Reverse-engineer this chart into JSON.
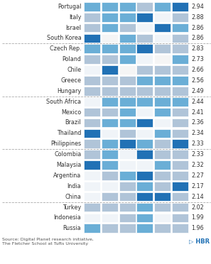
{
  "countries": [
    "Portugal",
    "Italy",
    "Israel",
    "South Korea",
    "Czech Rep.",
    "Poland",
    "Chile",
    "Greece",
    "Hungary",
    "South Africa",
    "Mexico",
    "Brazil",
    "Thailand",
    "Philippines",
    "Colombia",
    "Malaysia",
    "Argentina",
    "India",
    "China",
    "Turkey",
    "Indonesia",
    "Russia"
  ],
  "scores": [
    2.94,
    2.88,
    2.86,
    2.86,
    2.83,
    2.73,
    2.66,
    2.56,
    2.49,
    2.44,
    2.41,
    2.36,
    2.34,
    2.33,
    2.33,
    2.32,
    2.27,
    2.17,
    2.14,
    2.02,
    1.99,
    1.96
  ],
  "dividers_after": [
    4,
    9,
    14,
    19
  ],
  "num_cols": 6,
  "cell_colors": [
    [
      "#6aaed6",
      "#6aaed6",
      "#6aaed6",
      "#b0c4d8",
      "#6aaed6",
      "#2171b5"
    ],
    [
      "#b0c4d8",
      "#6aaed6",
      "#6aaed6",
      "#2171b5",
      "#f0f4f8",
      "#b0c4d8"
    ],
    [
      "#b0c4d8",
      "#6aaed6",
      "#b0c4d8",
      "#f0f4f8",
      "#2171b5",
      "#6aaed6"
    ],
    [
      "#2171b5",
      "#f5f5f5",
      "#6aaed6",
      "#b0c4d8",
      "#f0f4f8",
      "#b0c4d8"
    ],
    [
      "#6aaed6",
      "#6aaed6",
      "#6aaed6",
      "#2171b5",
      "#b0c4d8",
      "#b0c4d8"
    ],
    [
      "#b0c4d8",
      "#b0c4d8",
      "#6aaed6",
      "#f0f4f8",
      "#f5f5f5",
      "#6aaed6"
    ],
    [
      "#f0f4f8",
      "#2171b5",
      "#f5f5f5",
      "#b0c4d8",
      "#b0c4d8",
      "#b0c4d8"
    ],
    [
      "#b0c4d8",
      "#b0c4d8",
      "#b0c4d8",
      "#6aaed6",
      "#6aaed6",
      "#6aaed6"
    ],
    [
      "#b0c4d8",
      "#b0c4d8",
      "#b0c4d8",
      "#b0c4d8",
      "#b0c4d8",
      "#b0c4d8"
    ],
    [
      "#f0f4f8",
      "#6aaed6",
      "#6aaed6",
      "#6aaed6",
      "#6aaed6",
      "#6aaed6"
    ],
    [
      "#b0c4d8",
      "#b0c4d8",
      "#6aaed6",
      "#f0f4f8",
      "#6aaed6",
      "#b0c4d8"
    ],
    [
      "#b0c4d8",
      "#6aaed6",
      "#6aaed6",
      "#2171b5",
      "#f0f4f8",
      "#b0c4d8"
    ],
    [
      "#2171b5",
      "#f0f4f8",
      "#b0c4d8",
      "#f0f4f8",
      "#6aaed6",
      "#b0c4d8"
    ],
    [
      "#b0c4d8",
      "#6aaed6",
      "#2171b5",
      "#6aaed6",
      "#b0c4d8",
      "#2171b5"
    ],
    [
      "#b0c4d8",
      "#6aaed6",
      "#f0f4f8",
      "#2171b5",
      "#b0c4d8",
      "#b0c4d8"
    ],
    [
      "#2171b5",
      "#6aaed6",
      "#f0f4f8",
      "#f0f4f8",
      "#6aaed6",
      "#b0c4d8"
    ],
    [
      "#f0f4f8",
      "#b0c4d8",
      "#6aaed6",
      "#2171b5",
      "#b0c4d8",
      "#b0c4d8"
    ],
    [
      "#f0f4f8",
      "#f0f4f8",
      "#b0c4d8",
      "#6aaed6",
      "#b0c4d8",
      "#2171b5"
    ],
    [
      "#f0f4f8",
      "#b0c4d8",
      "#b0c4d8",
      "#2171b5",
      "#2171b5",
      "#b0c4d8"
    ],
    [
      "#b0c4d8",
      "#b0c4d8",
      "#b0c4d8",
      "#6aaed6",
      "#b0c4d8",
      "#b0c4d8"
    ],
    [
      "#f0f4f8",
      "#f0f4f8",
      "#b0c4d8",
      "#6aaed6",
      "#f0f4f8",
      "#b0c4d8"
    ],
    [
      "#6aaed6",
      "#b0c4d8",
      "#b0c4d8",
      "#6aaed6",
      "#b0c4d8",
      "#b0c4d8"
    ]
  ],
  "source_text": "Source: Digital Planet research initiative,\nThe Fletcher School at Tufts University",
  "hbr_text": "▷ HBR",
  "bg_color": "#ffffff",
  "text_color": "#333333",
  "label_fontsize": 5.8,
  "score_fontsize": 5.8
}
